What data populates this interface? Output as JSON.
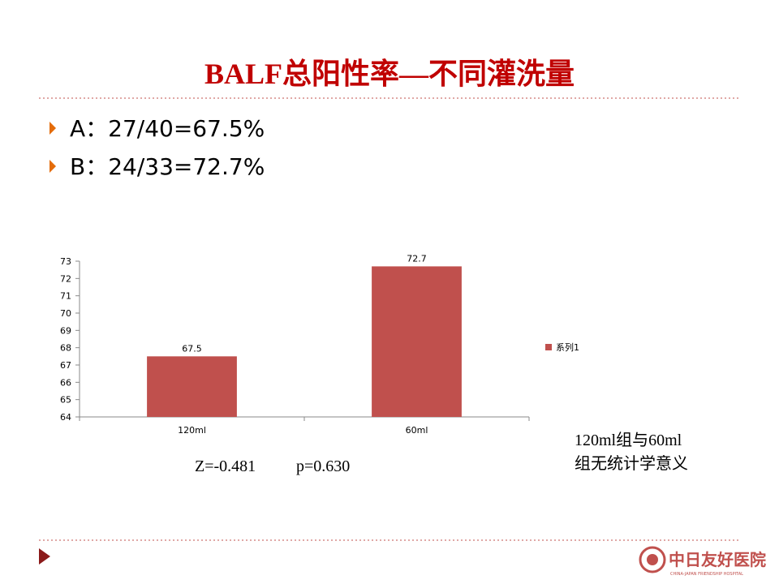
{
  "title": "BALF总阳性率—不同灌洗量",
  "bullets": [
    "A：27/40=67.5%",
    "B：24/33=72.7%"
  ],
  "statistics": [
    "Z=-0.481",
    "p=0.630"
  ],
  "conclusion": [
    "120ml组与60ml",
    "组无统计学意义"
  ],
  "logo": {
    "name": "中日友好医院",
    "subtitle": "CHINA-JAPAN FRIENDSHIP HOSPITAL"
  },
  "chart_data": {
    "type": "bar",
    "categories": [
      "120ml",
      "60ml"
    ],
    "series": [
      {
        "name": "系列1",
        "color": "#c0504d",
        "values": [
          67.5,
          72.7
        ]
      }
    ],
    "ylim": [
      64,
      73
    ],
    "yticks": [
      64,
      65,
      66,
      67,
      68,
      69,
      70,
      71,
      72,
      73
    ],
    "grid": false,
    "legend": "right",
    "data_labels": true
  }
}
